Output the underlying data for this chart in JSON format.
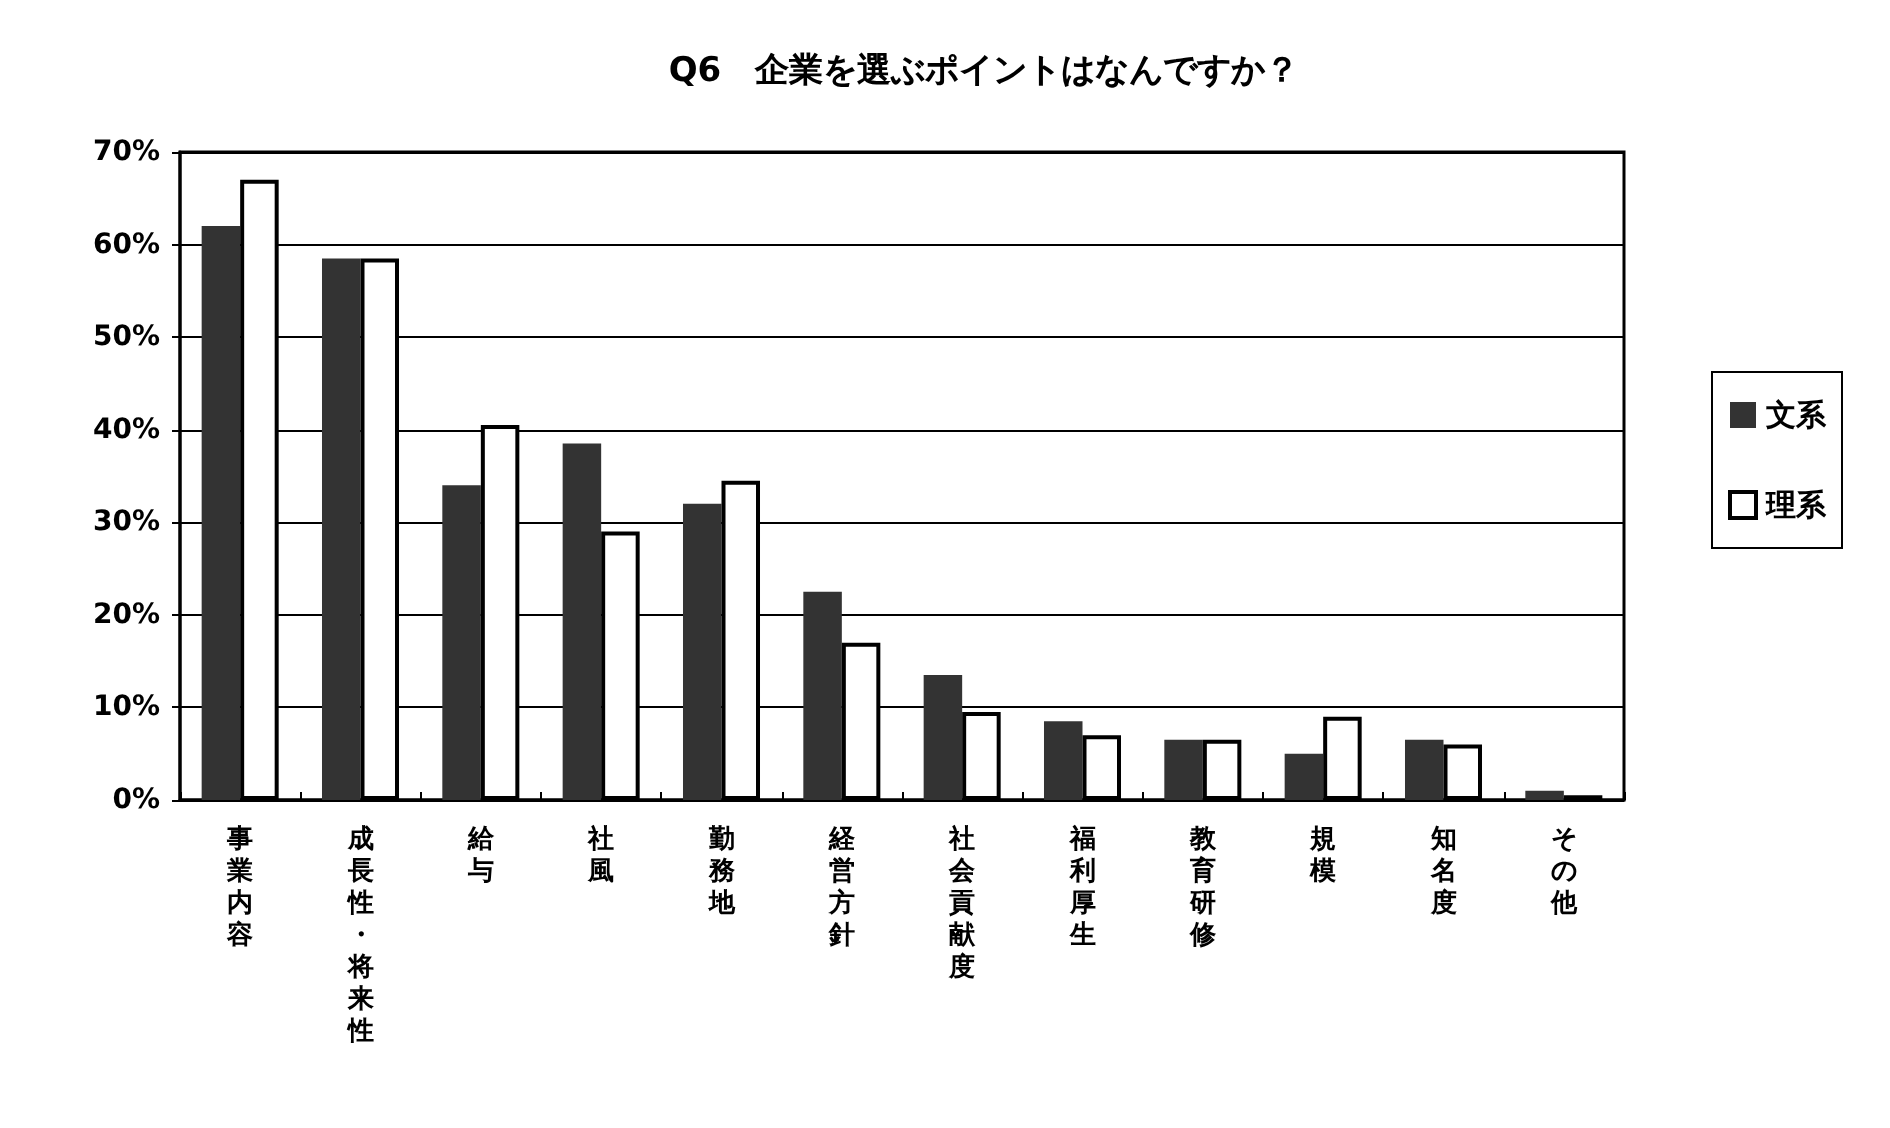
{
  "chart_data": {
    "type": "bar",
    "title": "Q6　企業を選ぶポイントはなんですか？",
    "categories": [
      "事業内容",
      "成長性・将来性",
      "給与",
      "社風",
      "勤務地",
      "経営方針",
      "社会貢献度",
      "福利厚生",
      "教育研修",
      "規模",
      "知名度",
      "その他"
    ],
    "series": [
      {
        "name": "文系",
        "color": "#333333",
        "values": [
          62,
          58.5,
          34,
          38.5,
          32,
          22.5,
          13.5,
          8.5,
          6.5,
          5,
          6.5,
          1
        ]
      },
      {
        "name": "理系",
        "color": "#ffffff",
        "values": [
          67,
          58.5,
          40.5,
          29,
          34.5,
          17,
          9.5,
          7,
          6.5,
          9,
          6,
          0.5
        ]
      }
    ],
    "ylim": [
      0,
      70
    ],
    "yticks": [
      {
        "value": 0,
        "label": "0%"
      },
      {
        "value": 10,
        "label": "10%"
      },
      {
        "value": 20,
        "label": "20%"
      },
      {
        "value": 30,
        "label": "30%"
      },
      {
        "value": 40,
        "label": "40%"
      },
      {
        "value": 50,
        "label": "50%"
      },
      {
        "value": 60,
        "label": "60%"
      },
      {
        "value": 70,
        "label": "70%"
      }
    ],
    "grid": "y",
    "legend": "right"
  }
}
